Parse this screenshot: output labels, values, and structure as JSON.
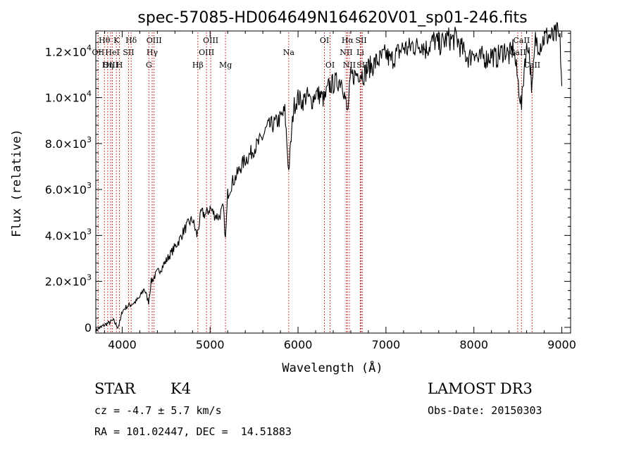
{
  "chart_data": {
    "type": "line",
    "title": "spec-57085-HD064649N164620V01_sp01-246.fits",
    "xlabel": "Wavelength (Å)",
    "ylabel": "Flux (relative)",
    "xlim": [
      3700,
      9100
    ],
    "ylim": [
      -250,
      12900
    ],
    "x_ticks": [
      {
        "value": 4000,
        "label": "4000"
      },
      {
        "value": 5000,
        "label": "5000"
      },
      {
        "value": 6000,
        "label": "6000"
      },
      {
        "value": 7000,
        "label": "7000"
      },
      {
        "value": 8000,
        "label": "8000"
      },
      {
        "value": 9000,
        "label": "9000"
      }
    ],
    "y_ticks": [
      {
        "value": 0,
        "mant": "0",
        "exp": ""
      },
      {
        "value": 2000,
        "mant": "2.0×10",
        "exp": "3"
      },
      {
        "value": 4000,
        "mant": "4.0×10",
        "exp": "3"
      },
      {
        "value": 6000,
        "mant": "6.0×10",
        "exp": "3"
      },
      {
        "value": 8000,
        "mant": "8.0×10",
        "exp": "3"
      },
      {
        "value": 10000,
        "mant": "1.0×10",
        "exp": "4"
      },
      {
        "value": 12000,
        "mant": "1.2×10",
        "exp": "4"
      }
    ],
    "spectral_lines": [
      {
        "label": "Hθ",
        "wavelength": 3798,
        "row": 1
      },
      {
        "label": "OII",
        "wavelength": 3727,
        "row": 2
      },
      {
        "label": "Hη",
        "wavelength": 3835,
        "row": 3
      },
      {
        "label": "OIII",
        "wavelength": 3869,
        "row": 3
      },
      {
        "label": "HeI",
        "wavelength": 3889,
        "row": 2
      },
      {
        "label": "K",
        "wavelength": 3934,
        "row": 1
      },
      {
        "label": "H",
        "wavelength": 3969,
        "row": 3
      },
      {
        "label": "SII",
        "wavelength": 4072,
        "row": 2
      },
      {
        "label": "Hδ",
        "wavelength": 4102,
        "row": 1
      },
      {
        "label": "G",
        "wavelength": 4304,
        "row": 3
      },
      {
        "label": "OIII",
        "wavelength": 4363,
        "row": 1
      },
      {
        "label": "Hγ",
        "wavelength": 4341,
        "row": 2
      },
      {
        "label": "Hβ",
        "wavelength": 4861,
        "row": 3
      },
      {
        "label": "OIII",
        "wavelength": 5007,
        "row": 1
      },
      {
        "label": "OIII",
        "wavelength": 4959,
        "row": 2
      },
      {
        "label": "Mg",
        "wavelength": 5175,
        "row": 3
      },
      {
        "label": "Na",
        "wavelength": 5894,
        "row": 2
      },
      {
        "label": "OI",
        "wavelength": 6300,
        "row": 1
      },
      {
        "label": "OI",
        "wavelength": 6364,
        "row": 3
      },
      {
        "label": "Hα",
        "wavelength": 6563,
        "row": 1
      },
      {
        "label": "NII",
        "wavelength": 6548,
        "row": 2
      },
      {
        "label": "NII",
        "wavelength": 6584,
        "row": 3
      },
      {
        "label": "SII",
        "wavelength": 6717,
        "row": 1
      },
      {
        "label": "Li",
        "wavelength": 6708,
        "row": 2
      },
      {
        "label": "SII",
        "wavelength": 6731,
        "row": 3
      },
      {
        "label": "CaII",
        "wavelength": 8542,
        "row": 1
      },
      {
        "label": "CaII",
        "wavelength": 8498,
        "row": 2
      },
      {
        "label": "CaII",
        "wavelength": 8662,
        "row": 3
      }
    ],
    "spectrum": {
      "x": [
        3700,
        3750,
        3800,
        3850,
        3900,
        3950,
        3980,
        4000,
        4050,
        4100,
        4150,
        4200,
        4250,
        4300,
        4330,
        4350,
        4400,
        4450,
        4500,
        4550,
        4600,
        4650,
        4700,
        4750,
        4800,
        4850,
        4900,
        4950,
        5000,
        5050,
        5100,
        5150,
        5175,
        5200,
        5250,
        5300,
        5350,
        5400,
        5450,
        5500,
        5550,
        5600,
        5650,
        5700,
        5750,
        5800,
        5850,
        5894,
        5950,
        6000,
        6050,
        6100,
        6150,
        6200,
        6250,
        6300,
        6350,
        6400,
        6450,
        6500,
        6563,
        6600,
        6650,
        6700,
        6750,
        6800,
        6850,
        6900,
        6950,
        7000,
        7050,
        7100,
        7150,
        7200,
        7250,
        7300,
        7350,
        7400,
        7450,
        7500,
        7550,
        7600,
        7650,
        7700,
        7750,
        7800,
        7850,
        7900,
        7950,
        8000,
        8050,
        8100,
        8150,
        8200,
        8250,
        8300,
        8350,
        8400,
        8450,
        8498,
        8542,
        8580,
        8620,
        8662,
        8700,
        8750,
        8800,
        8850,
        8900,
        8950,
        8980,
        9000
      ],
      "flux": [
        -150,
        0,
        100,
        200,
        300,
        0,
        300,
        700,
        900,
        1000,
        1100,
        1300,
        1700,
        1100,
        2000,
        2100,
        2400,
        2600,
        2900,
        3200,
        3500,
        3800,
        4200,
        4500,
        4700,
        4000,
        5000,
        4900,
        5200,
        4900,
        4800,
        5200,
        3800,
        5800,
        6300,
        6600,
        7000,
        7300,
        7500,
        7800,
        8000,
        8300,
        8700,
        8800,
        8900,
        9100,
        9400,
        6800,
        9600,
        10000,
        9800,
        10100,
        9800,
        10200,
        10100,
        9900,
        10500,
        10600,
        10700,
        10800,
        9300,
        10900,
        11000,
        11100,
        11000,
        11300,
        11400,
        11600,
        11700,
        11900,
        11600,
        11800,
        12000,
        12200,
        12100,
        12300,
        12200,
        12400,
        12100,
        12300,
        12500,
        12300,
        12400,
        12600,
        12500,
        12600,
        12200,
        11900,
        11700,
        12100,
        11600,
        11800,
        11700,
        11900,
        11700,
        11900,
        12100,
        11800,
        12200,
        10800,
        9600,
        11700,
        12400,
        10300,
        12500,
        12300,
        12600,
        12700,
        12600,
        12800,
        12400,
        10500
      ]
    }
  },
  "object": {
    "class_label": "STAR",
    "subclass": "K4",
    "cz_text": "cz = -4.7 ± 5.7 km/s",
    "ra_dec_text": "RA = 101.02447, DEC =  14.51883"
  },
  "survey": {
    "name": "LAMOST DR3",
    "obs_date_text": "Obs-Date: 20150303"
  },
  "colors": {
    "spectrum": "#000000",
    "line_markers": "#c00000",
    "axes": "#000000"
  }
}
